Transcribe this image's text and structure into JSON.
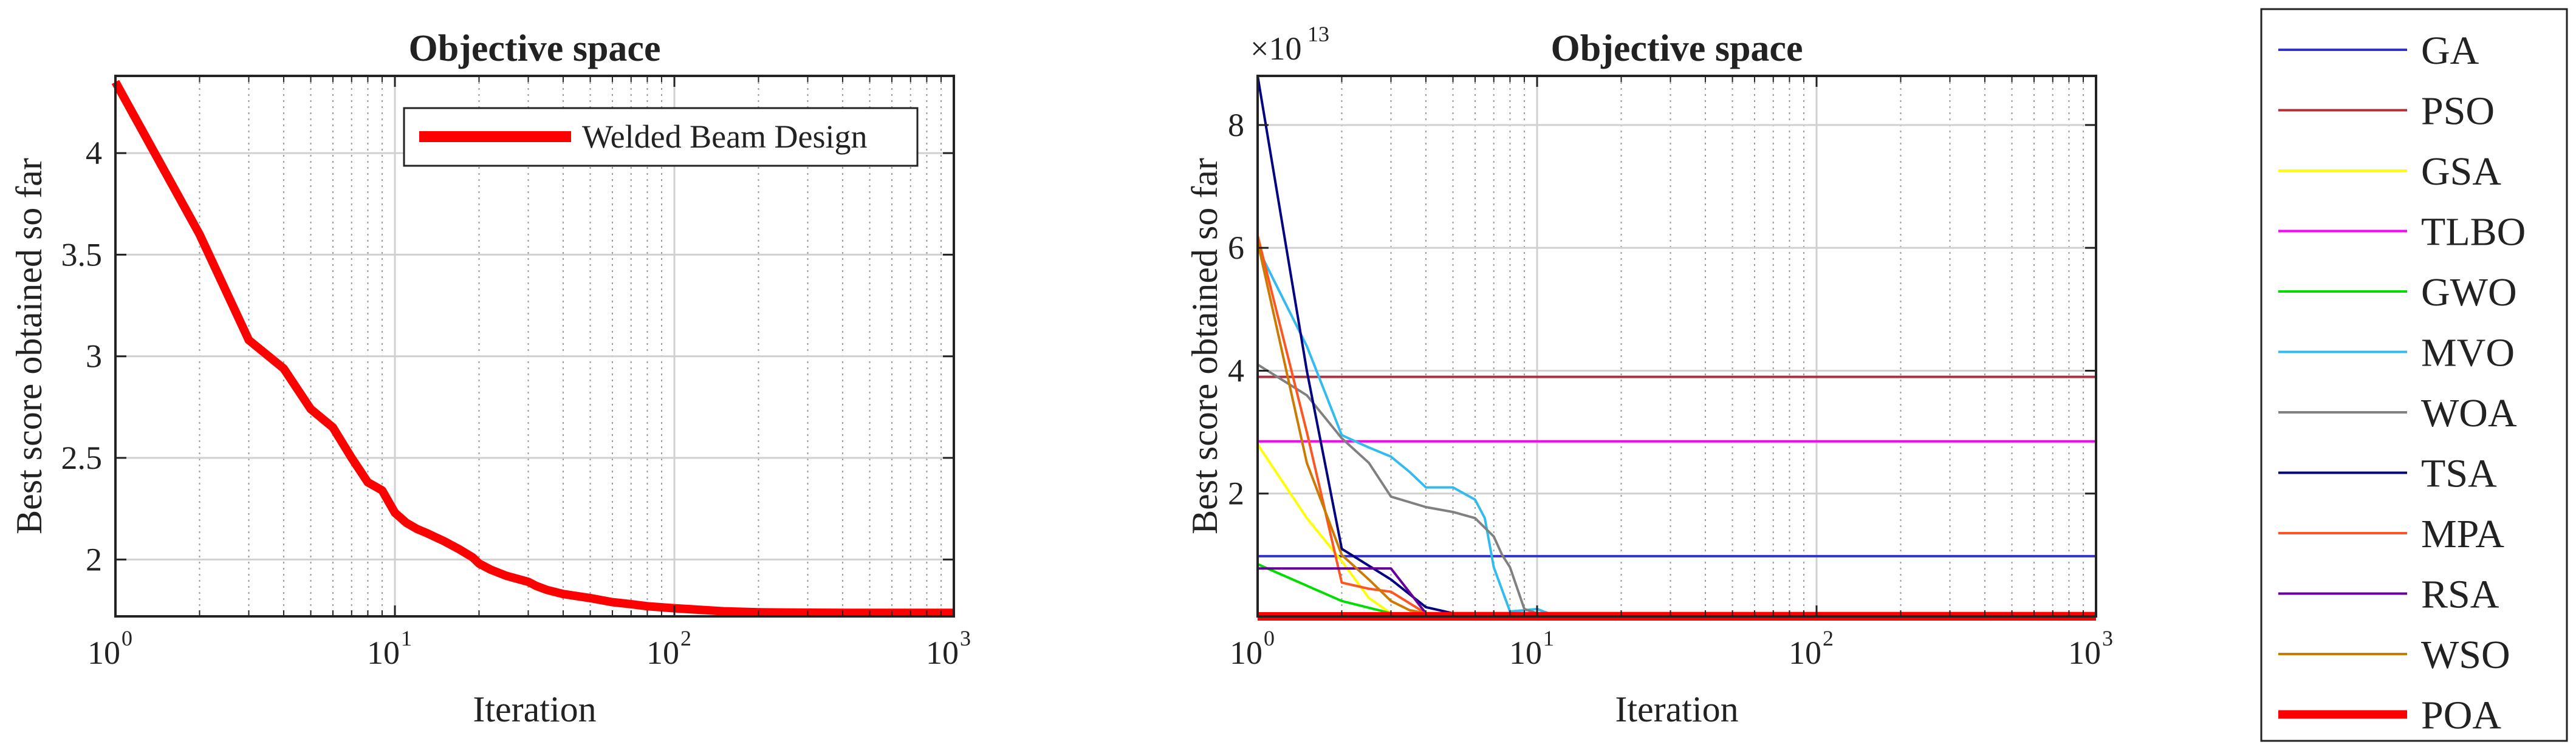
{
  "chart_data": [
    {
      "type": "line",
      "title": "Objective space",
      "xlabel": "Iteration",
      "ylabel": "Best score obtained so far",
      "xscale": "log",
      "xlim": [
        1,
        1000
      ],
      "ylim": [
        1.72,
        4.38
      ],
      "y_ticks": [
        "2",
        "2.5",
        "3",
        "3.5",
        "4"
      ],
      "x_ticks": [
        {
          "base": "10",
          "exp": "0"
        },
        {
          "base": "10",
          "exp": "1"
        },
        {
          "base": "10",
          "exp": "2"
        },
        {
          "base": "10",
          "exp": "3"
        }
      ],
      "grid": true,
      "legend_position": "top-right",
      "series": [
        {
          "name": "Welded Beam Design",
          "color": "#ff0000",
          "x": [
            1,
            2,
            3,
            4,
            5,
            6,
            7,
            8,
            9,
            10,
            11,
            12,
            13,
            15,
            17,
            19,
            20,
            22,
            25,
            30,
            32,
            35,
            40,
            50,
            60,
            70,
            80,
            100,
            150,
            200,
            300,
            500,
            1000
          ],
          "y": [
            4.35,
            3.6,
            3.08,
            2.94,
            2.74,
            2.65,
            2.5,
            2.38,
            2.34,
            2.23,
            2.18,
            2.15,
            2.13,
            2.09,
            2.05,
            2.01,
            1.98,
            1.95,
            1.92,
            1.89,
            1.87,
            1.85,
            1.83,
            1.81,
            1.79,
            1.78,
            1.77,
            1.76,
            1.745,
            1.74,
            1.738,
            1.737,
            1.737
          ]
        }
      ]
    },
    {
      "type": "line",
      "title": "Objective space",
      "xlabel": "Iteration",
      "ylabel": "Best score obtained so far",
      "xscale": "log",
      "xlim": [
        1,
        1000
      ],
      "ylim": [
        0,
        8.8
      ],
      "y_multiplier": {
        "base": "×10",
        "exp": "13"
      },
      "y_ticks": [
        "2",
        "4",
        "6",
        "8"
      ],
      "x_ticks": [
        {
          "base": "10",
          "exp": "0"
        },
        {
          "base": "10",
          "exp": "1"
        },
        {
          "base": "10",
          "exp": "2"
        },
        {
          "base": "10",
          "exp": "3"
        }
      ],
      "grid": true,
      "legend_position": "outside-right",
      "series": [
        {
          "name": "GA",
          "color": "#3333cc",
          "x": [
            1,
            1000
          ],
          "y": [
            0.98,
            0.98
          ]
        },
        {
          "name": "PSO",
          "color": "#b0303a",
          "x": [
            1,
            1000
          ],
          "y": [
            3.9,
            3.9
          ]
        },
        {
          "name": "GSA",
          "color": "#ffff00",
          "x": [
            1,
            1.5,
            2,
            2.5,
            3,
            1000
          ],
          "y": [
            2.8,
            1.6,
            0.9,
            0.3,
            0.05,
            0.05
          ]
        },
        {
          "name": "TLBO",
          "color": "#ff00ff",
          "x": [
            1,
            1000
          ],
          "y": [
            2.85,
            2.85
          ]
        },
        {
          "name": "GWO",
          "color": "#00dd00",
          "x": [
            1,
            2,
            3,
            1000
          ],
          "y": [
            0.85,
            0.25,
            0.05,
            0.05
          ]
        },
        {
          "name": "MVO",
          "color": "#33bbee",
          "x": [
            1,
            1.5,
            2,
            2.5,
            3,
            3.5,
            4,
            4.5,
            5,
            6,
            6.5,
            7,
            8,
            9,
            10,
            11,
            1000
          ],
          "y": [
            6.0,
            4.4,
            2.95,
            2.75,
            2.6,
            2.35,
            2.1,
            2.1,
            2.1,
            1.9,
            1.6,
            0.8,
            0.08,
            0.1,
            0.12,
            0.05,
            0.05
          ]
        },
        {
          "name": "WOA",
          "color": "#808080",
          "x": [
            1,
            1.5,
            2,
            2.5,
            3,
            4,
            5,
            6,
            7,
            7.5,
            8,
            9,
            10,
            1000
          ],
          "y": [
            4.1,
            3.6,
            2.9,
            2.5,
            1.95,
            1.78,
            1.7,
            1.6,
            1.3,
            1.0,
            0.8,
            0.12,
            0.05,
            0.05
          ]
        },
        {
          "name": "TSA",
          "color": "#000080",
          "x": [
            1,
            1.5,
            2,
            3,
            4,
            5,
            1000
          ],
          "y": [
            8.8,
            4.0,
            1.1,
            0.6,
            0.15,
            0.05,
            0.05
          ]
        },
        {
          "name": "MPA",
          "color": "#ff5522",
          "x": [
            1,
            1.5,
            2,
            2.5,
            3,
            4,
            1000
          ],
          "y": [
            6.2,
            3.0,
            0.55,
            0.45,
            0.4,
            0.05,
            0.05
          ]
        },
        {
          "name": "RSA",
          "color": "#660099",
          "x": [
            1,
            2,
            3,
            4,
            1000
          ],
          "y": [
            0.78,
            0.78,
            0.78,
            0.05,
            0.05
          ]
        },
        {
          "name": "WSO",
          "color": "#cc7a00",
          "x": [
            1,
            1.5,
            2,
            2.5,
            3,
            3.5,
            4,
            1000
          ],
          "y": [
            6.1,
            2.5,
            1.0,
            0.6,
            0.25,
            0.1,
            0.05,
            0.05
          ]
        },
        {
          "name": "POA",
          "color": "#ff0000",
          "x": [
            1,
            1000
          ],
          "y": [
            0.0,
            0.0
          ]
        }
      ]
    }
  ]
}
